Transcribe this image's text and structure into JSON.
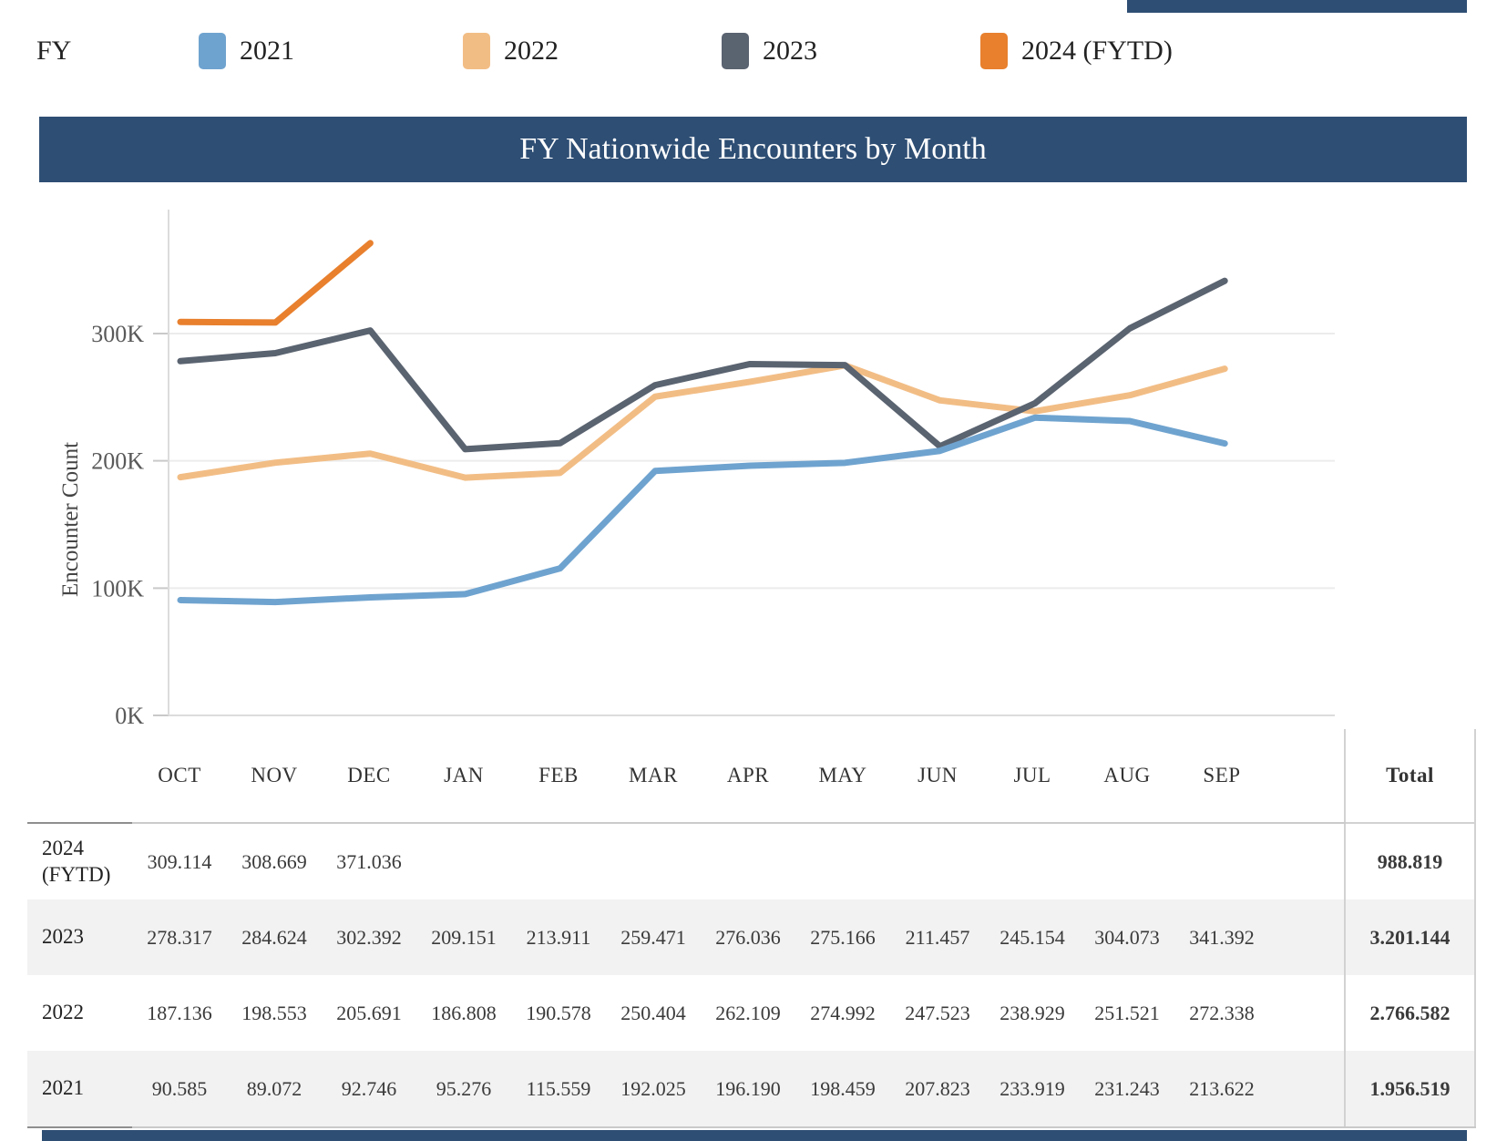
{
  "brand_color": "#2e4e74",
  "legend": {
    "label": "FY",
    "items": [
      {
        "label": "2021",
        "color": "#6fa3cf"
      },
      {
        "label": "2022",
        "color": "#f2bd85"
      },
      {
        "label": "2023",
        "color": "#5a6370"
      },
      {
        "label": "2024 (FYTD)",
        "color": "#e8802e"
      }
    ]
  },
  "title": "FY Nationwide Encounters by Month",
  "chart_data": {
    "type": "line",
    "title": "FY Nationwide Encounters by Month",
    "xlabel": "",
    "ylabel": "Encounter Count",
    "categories": [
      "OCT",
      "NOV",
      "DEC",
      "JAN",
      "FEB",
      "MAR",
      "APR",
      "MAY",
      "JUN",
      "JUL",
      "AUG",
      "SEP"
    ],
    "y_ticks": [
      {
        "label": "0K",
        "value": 0
      },
      {
        "label": "100K",
        "value": 100000
      },
      {
        "label": "200K",
        "value": 200000
      },
      {
        "label": "300K",
        "value": 300000
      }
    ],
    "ylim": [
      0,
      390000
    ],
    "grid": true,
    "legend_position": "top",
    "series": [
      {
        "name": "2021",
        "color": "#6fa3cf",
        "values": [
          90585,
          89072,
          92746,
          95276,
          115559,
          192025,
          196190,
          198459,
          207823,
          233919,
          231243,
          213622
        ]
      },
      {
        "name": "2022",
        "color": "#f2bd85",
        "values": [
          187136,
          198553,
          205691,
          186808,
          190578,
          250404,
          262109,
          274992,
          247523,
          238929,
          251521,
          272338
        ]
      },
      {
        "name": "2023",
        "color": "#5a6370",
        "values": [
          278317,
          284624,
          302392,
          209151,
          213911,
          259471,
          276036,
          275166,
          211457,
          245154,
          304073,
          341392
        ]
      },
      {
        "name": "2024 (FYTD)",
        "color": "#e8802e",
        "values": [
          309114,
          308669,
          371036
        ]
      }
    ]
  },
  "table": {
    "month_headers": [
      "OCT",
      "NOV",
      "DEC",
      "JAN",
      "FEB",
      "MAR",
      "APR",
      "MAY",
      "JUN",
      "JUL",
      "AUG",
      "SEP"
    ],
    "total_header": "Total",
    "rows": [
      {
        "label": "2024 (FYTD)",
        "shaded": false,
        "values": [
          "309.114",
          "308.669",
          "371.036",
          "",
          "",
          "",
          "",
          "",
          "",
          "",
          "",
          ""
        ],
        "total": "988.819"
      },
      {
        "label": "2023",
        "shaded": true,
        "values": [
          "278.317",
          "284.624",
          "302.392",
          "209.151",
          "213.911",
          "259.471",
          "276.036",
          "275.166",
          "211.457",
          "245.154",
          "304.073",
          "341.392"
        ],
        "total": "3.201.144"
      },
      {
        "label": "2022",
        "shaded": false,
        "values": [
          "187.136",
          "198.553",
          "205.691",
          "186.808",
          "190.578",
          "250.404",
          "262.109",
          "274.992",
          "247.523",
          "238.929",
          "251.521",
          "272.338"
        ],
        "total": "2.766.582"
      },
      {
        "label": "2021",
        "shaded": true,
        "values": [
          "90.585",
          "89.072",
          "92.746",
          "95.276",
          "115.559",
          "192.025",
          "196.190",
          "198.459",
          "207.823",
          "233.919",
          "231.243",
          "213.622"
        ],
        "total": "1.956.519"
      }
    ]
  }
}
